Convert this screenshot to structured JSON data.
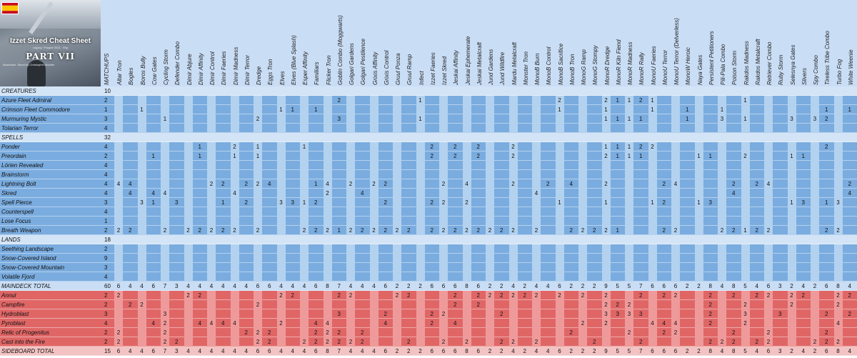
{
  "header": {
    "title": "Izzet Skred Cheat Sheet",
    "part": "PART VII",
    "collab_label": "MATCHUPS",
    "subtitle": "Legacy / Pauper 2021 · Esp",
    "credit": "Illustration: Skred by Christopher Moeller",
    "flag_colors": [
      "#c60b1e",
      "#ffc400",
      "#c60b1e"
    ]
  },
  "columns": [
    "Altar Tron",
    "Bogles",
    "Boros Bully",
    "Cow Gates",
    "Cycling Storm",
    "Defender Combo",
    "Dimir Abjure",
    "Dimir Affinity",
    "Dimir Control",
    "Dimir Faeries",
    "Dimir Madness",
    "Dimir Terror",
    "Dredge",
    "Eggs Tron",
    "Elves",
    "Elves (Blue Splash)",
    "Esper Affinity",
    "Familiars",
    "Flicker Tron",
    "Goblin Combo (Moggwarts)",
    "Golgari Gardens",
    "Golgari Pestilence",
    "Grixis Affinity",
    "Grixis Control",
    "Gruul Ponza",
    "Gruul Ramp",
    "Infect",
    "Izzet Faeries",
    "Izzet Skred",
    "Jeskai Affinity",
    "Jeskai Ephemerate",
    "Jeskai Metalcraft",
    "Jund Gardens",
    "Jund Wildfire",
    "Mardu Metalcraft",
    "Monster Tron",
    "MonoB Burn",
    "MonoB Control",
    "MonoB Sacrifice",
    "MonoB Tron",
    "MonoG Ramp",
    "MonoG Stompy",
    "MonoR Dredge",
    "MonoR Kiln Fiend",
    "MonoR Madness",
    "MonoR Rally",
    "MonoU Faeries",
    "MonoU Terror",
    "MonoU Terror (Delverless)",
    "MonoW Heroic",
    "Naya Gates",
    "Persistent Petitioners",
    "Pili-Pala Combo",
    "Poison Storm",
    "Rakdos Madness",
    "Rakdos Metalcraft",
    "Retriever Combo",
    "Ruby Storm",
    "Selesnya Gates",
    "Slivers",
    "Spy Combo",
    "Tireless Tribe Combo",
    "Turbo Fog",
    "White Weenie"
  ],
  "rows": [
    {
      "type": "section",
      "label": "CREATURES",
      "count": "10",
      "cells": {}
    },
    {
      "type": "card",
      "zone": "main",
      "label": "Azure Fleet Admiral",
      "count": "2",
      "cells": {
        "19": "2",
        "26": "1",
        "38": "2",
        "42": "2",
        "43": "1",
        "44": "1",
        "45": "2",
        "46": "1",
        "54": "1"
      }
    },
    {
      "type": "card",
      "zone": "main",
      "label": "Crimson Fleet Commodore",
      "count": "1",
      "cells": {
        "2": "1",
        "14": "1",
        "15": "1",
        "17": "1",
        "38": "1",
        "42": "1",
        "46": "1",
        "49": "1",
        "52": "1",
        "61": "1",
        "63": "1"
      }
    },
    {
      "type": "card",
      "zone": "main",
      "label": "Murmuring Mystic",
      "count": "3",
      "cells": {
        "4": "1",
        "12": "2",
        "19": "3",
        "26": "1",
        "42": "1",
        "43": "1",
        "44": "1",
        "45": "1",
        "49": "1",
        "52": "3",
        "54": "1",
        "58": "3",
        "60": "3",
        "61": "2"
      }
    },
    {
      "type": "card",
      "zone": "main",
      "label": "Tolarian Terror",
      "count": "4",
      "cells": {}
    },
    {
      "type": "section",
      "label": "SPELLS",
      "count": "32",
      "cells": {}
    },
    {
      "type": "card",
      "zone": "main",
      "label": "Ponder",
      "count": "4",
      "cells": {
        "7": "1",
        "10": "2",
        "12": "1",
        "16": "1",
        "27": "2",
        "29": "2",
        "31": "2",
        "34": "2",
        "42": "1",
        "43": "1",
        "44": "1",
        "45": "2",
        "46": "2",
        "61": "2"
      }
    },
    {
      "type": "card",
      "zone": "main",
      "label": "Preordain",
      "count": "2",
      "cells": {
        "3": "1",
        "7": "1",
        "10": "1",
        "12": "1",
        "27": "2",
        "29": "2",
        "31": "2",
        "34": "2",
        "42": "2",
        "43": "1",
        "44": "1",
        "45": "1",
        "50": "1",
        "51": "1",
        "54": "2",
        "58": "1",
        "59": "1"
      }
    },
    {
      "type": "card",
      "zone": "main",
      "label": "Lórien Revealed",
      "count": "4",
      "cells": {}
    },
    {
      "type": "card",
      "zone": "main",
      "label": "Brainstorm",
      "count": "4",
      "cells": {}
    },
    {
      "type": "card",
      "zone": "main",
      "label": "Lightning Bolt",
      "count": "4",
      "cells": {
        "0": "4",
        "1": "4",
        "8": "2",
        "9": "2",
        "11": "2",
        "12": "2",
        "13": "4",
        "17": "1",
        "18": "4",
        "20": "2",
        "22": "2",
        "23": "2",
        "28": "2",
        "30": "4",
        "34": "2",
        "37": "2",
        "39": "4",
        "42": "2",
        "47": "2",
        "48": "4",
        "53": "2",
        "55": "2",
        "56": "4",
        "63": "2"
      }
    },
    {
      "type": "card",
      "zone": "main",
      "label": "Skred",
      "count": "4",
      "cells": {
        "1": "4",
        "3": "4",
        "4": "4",
        "10": "4",
        "18": "2",
        "21": "4",
        "36": "4",
        "53": "4",
        "63": "4"
      }
    },
    {
      "type": "card",
      "zone": "main",
      "label": "Spell Pierce",
      "count": "3",
      "cells": {
        "2": "3",
        "3": "1",
        "5": "3",
        "9": "1",
        "11": "2",
        "14": "3",
        "15": "3",
        "16": "1",
        "17": "2",
        "23": "2",
        "27": "2",
        "28": "2",
        "30": "2",
        "38": "1",
        "42": "1",
        "46": "1",
        "47": "2",
        "50": "1",
        "51": "3",
        "58": "1",
        "59": "3",
        "61": "1",
        "62": "3"
      }
    },
    {
      "type": "card",
      "zone": "main",
      "label": "Counterspell",
      "count": "4",
      "cells": {}
    },
    {
      "type": "card",
      "zone": "main",
      "label": "Lose Focus",
      "count": "1",
      "cells": {}
    },
    {
      "type": "card",
      "zone": "main",
      "label": "Breath Weapon",
      "count": "2",
      "cells": {
        "0": "2",
        "1": "2",
        "4": "2",
        "6": "2",
        "7": "2",
        "8": "2",
        "9": "2",
        "10": "2",
        "12": "2",
        "16": "2",
        "17": "2",
        "18": "2",
        "19": "1",
        "20": "2",
        "21": "2",
        "22": "2",
        "23": "2",
        "24": "2",
        "25": "2",
        "27": "2",
        "28": "2",
        "29": "2",
        "30": "2",
        "31": "2",
        "32": "2",
        "33": "2",
        "34": "2",
        "36": "2",
        "39": "2",
        "40": "2",
        "41": "2",
        "42": "2",
        "43": "1",
        "47": "2",
        "48": "2",
        "52": "2",
        "53": "2",
        "54": "1",
        "55": "2",
        "56": "2",
        "61": "2",
        "62": "2"
      }
    },
    {
      "type": "section",
      "label": "LANDS",
      "count": "18",
      "cells": {}
    },
    {
      "type": "card",
      "zone": "main",
      "label": "Seething Landscape",
      "count": "2",
      "cells": {}
    },
    {
      "type": "card",
      "zone": "main",
      "label": "Snow-Covered Island",
      "count": "9",
      "cells": {}
    },
    {
      "type": "card",
      "zone": "main",
      "label": "Snow-Covered Mountain",
      "count": "3",
      "cells": {}
    },
    {
      "type": "card",
      "zone": "main",
      "label": "Volatile Fjord",
      "count": "4",
      "cells": {}
    },
    {
      "type": "total",
      "zone": "main",
      "label": "MAINDECK TOTAL",
      "count": "60",
      "cells": {
        "0": "6",
        "1": "4",
        "2": "4",
        "3": "6",
        "4": "7",
        "5": "3",
        "6": "4",
        "7": "4",
        "8": "4",
        "9": "4",
        "10": "4",
        "11": "4",
        "12": "6",
        "13": "6",
        "14": "4",
        "15": "4",
        "16": "4",
        "17": "6",
        "18": "8",
        "19": "7",
        "20": "4",
        "21": "4",
        "22": "4",
        "23": "6",
        "24": "2",
        "25": "2",
        "26": "2",
        "27": "6",
        "28": "6",
        "29": "6",
        "30": "8",
        "31": "6",
        "32": "2",
        "33": "2",
        "34": "4",
        "35": "2",
        "36": "4",
        "37": "4",
        "38": "6",
        "39": "2",
        "40": "2",
        "41": "2",
        "42": "9",
        "43": "5",
        "44": "5",
        "45": "7",
        "46": "6",
        "47": "6",
        "48": "6",
        "49": "2",
        "50": "2",
        "51": "8",
        "52": "4",
        "53": "8",
        "54": "5",
        "55": "4",
        "56": "6",
        "57": "3",
        "58": "2",
        "59": "4",
        "60": "2",
        "61": "6",
        "62": "8",
        "63": "4"
      }
    },
    {
      "type": "card",
      "zone": "side",
      "label": "Annul",
      "count": "2",
      "cells": {
        "0": "2",
        "6": "2",
        "7": "2",
        "14": "2",
        "15": "2",
        "19": "2",
        "20": "2",
        "24": "2",
        "25": "2",
        "29": "2",
        "31": "2",
        "32": "2",
        "33": "2",
        "34": "2",
        "35": "2",
        "36": "2",
        "38": "2",
        "40": "2",
        "42": "2",
        "45": "2",
        "47": "2",
        "48": "2",
        "51": "2",
        "53": "2",
        "55": "2",
        "56": "2",
        "58": "2",
        "59": "2",
        "62": "2",
        "63": "2"
      }
    },
    {
      "type": "card",
      "zone": "side",
      "label": "Campfire",
      "count": "2",
      "cells": {
        "1": "2",
        "2": "2",
        "12": "2",
        "29": "2",
        "31": "2",
        "42": "2",
        "43": "2",
        "44": "2",
        "51": "2",
        "54": "2",
        "58": "2",
        "62": "2"
      }
    },
    {
      "type": "card",
      "zone": "side",
      "label": "Hydroblast",
      "count": "3",
      "cells": {
        "4": "3",
        "19": "3",
        "23": "2",
        "27": "2",
        "28": "2",
        "33": "2",
        "42": "3",
        "43": "3",
        "44": "3",
        "45": "3",
        "51": "2",
        "54": "3",
        "57": "3",
        "61": "2",
        "63": "2"
      }
    },
    {
      "type": "card",
      "zone": "side",
      "label": "Pyroblast",
      "count": "4",
      "cells": {
        "3": "4",
        "4": "2",
        "7": "4",
        "8": "4",
        "9": "4",
        "10": "4",
        "14": "2",
        "17": "4",
        "18": "4",
        "23": "4",
        "27": "2",
        "29": "4",
        "40": "2",
        "42": "2",
        "46": "4",
        "47": "4",
        "48": "4",
        "51": "2",
        "54": "2",
        "62": "4"
      }
    },
    {
      "type": "card",
      "zone": "side",
      "label": "Relic of Progenitus",
      "count": "2",
      "cells": {
        "0": "2",
        "4": "2",
        "11": "2",
        "12": "2",
        "13": "2",
        "17": "2",
        "18": "2",
        "19": "2",
        "21": "2",
        "39": "2",
        "44": "2",
        "47": "2",
        "48": "2",
        "53": "2",
        "56": "2",
        "61": "2"
      }
    },
    {
      "type": "card",
      "zone": "side",
      "label": "Cast into the Fire",
      "count": "2",
      "cells": {
        "0": "2",
        "4": "2",
        "5": "2",
        "12": "2",
        "13": "2",
        "16": "2",
        "17": "2",
        "18": "2",
        "19": "2",
        "20": "2",
        "21": "2",
        "25": "2",
        "28": "2",
        "30": "2",
        "33": "2",
        "34": "2",
        "36": "2",
        "41": "2",
        "45": "2",
        "51": "2",
        "52": "2",
        "53": "2",
        "55": "2",
        "56": "2",
        "60": "2",
        "61": "2",
        "62": "2"
      }
    },
    {
      "type": "total",
      "zone": "side",
      "label": "SIDEBOARD TOTAL",
      "count": "15",
      "cells": {
        "0": "6",
        "1": "4",
        "2": "4",
        "3": "6",
        "4": "7",
        "5": "3",
        "6": "4",
        "7": "4",
        "8": "4",
        "9": "4",
        "10": "4",
        "11": "4",
        "12": "6",
        "13": "6",
        "14": "4",
        "15": "4",
        "16": "4",
        "17": "6",
        "18": "8",
        "19": "7",
        "20": "4",
        "21": "4",
        "22": "4",
        "23": "6",
        "24": "2",
        "25": "2",
        "26": "2",
        "27": "6",
        "28": "6",
        "29": "6",
        "30": "8",
        "31": "6",
        "32": "2",
        "33": "2",
        "34": "4",
        "35": "2",
        "36": "4",
        "37": "4",
        "38": "6",
        "39": "2",
        "40": "2",
        "41": "2",
        "42": "9",
        "43": "5",
        "44": "5",
        "45": "7",
        "46": "6",
        "47": "6",
        "48": "6",
        "49": "2",
        "50": "2",
        "51": "8",
        "52": "4",
        "53": "8",
        "54": "5",
        "55": "4",
        "56": "6",
        "57": "3",
        "58": "2",
        "59": "4",
        "60": "2",
        "61": "6",
        "62": "8",
        "63": "4"
      }
    }
  ]
}
